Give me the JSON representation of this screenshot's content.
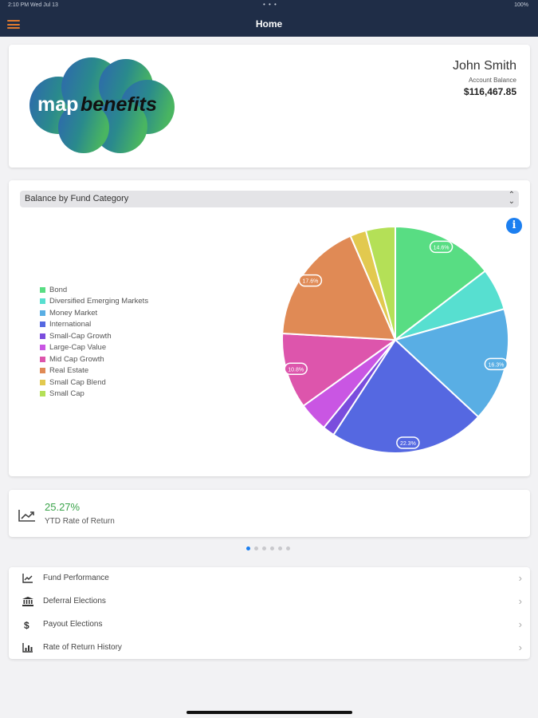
{
  "status_bar": {
    "time": "2:10 PM   Wed Jul 13",
    "dots": "• • •",
    "battery": "100%"
  },
  "nav": {
    "title": "Home"
  },
  "profile": {
    "logo_text_a": "map",
    "logo_text_b": "benefits",
    "name": "John Smith",
    "balance_label": "Account Balance",
    "balance": "$116,467.85"
  },
  "chart_section": {
    "selector_value": "Balance by Fund Category",
    "info_glyph": "i"
  },
  "chart_data": {
    "type": "pie",
    "start_angle_deg": 0,
    "slices": [
      {
        "name": "Bond",
        "value": 14.6,
        "color": "#58dd83",
        "label": "14.6%"
      },
      {
        "name": "Diversified Emerging Markets",
        "value": 6.0,
        "color": "#57dfd0",
        "label": ""
      },
      {
        "name": "Money Market",
        "value": 16.3,
        "color": "#59aee4",
        "label": "16.3%"
      },
      {
        "name": "International",
        "value": 22.3,
        "color": "#5568e1",
        "label": "22.3%"
      },
      {
        "name": "Small-Cap Growth",
        "value": 1.7,
        "color": "#7a4ddd",
        "label": ""
      },
      {
        "name": "Large-Cap Value",
        "value": 4.2,
        "color": "#c956e3",
        "label": ""
      },
      {
        "name": "Mid Cap Growth",
        "value": 10.8,
        "color": "#dd55ac",
        "label": "10.8%"
      },
      {
        "name": "Real Estate",
        "value": 17.6,
        "color": "#e08a55",
        "label": "17.6%"
      },
      {
        "name": "Small Cap Blend",
        "value": 2.3,
        "color": "#e2c94f",
        "label": ""
      },
      {
        "name": "Small Cap",
        "value": 4.2,
        "color": "#b4e057",
        "label": ""
      }
    ]
  },
  "ytd": {
    "value": "25.27%",
    "label": "YTD Rate of Return",
    "icon": "trend-chart-icon"
  },
  "pager": {
    "count": 6,
    "active": 0
  },
  "menu": [
    {
      "label": "Fund Performance",
      "icon": "bar-chart-icon"
    },
    {
      "label": "Deferral Elections",
      "icon": "bank-icon"
    },
    {
      "label": "Payout Elections",
      "icon": "dollar-icon"
    },
    {
      "label": "Rate of Return History",
      "icon": "column-chart-icon"
    }
  ]
}
